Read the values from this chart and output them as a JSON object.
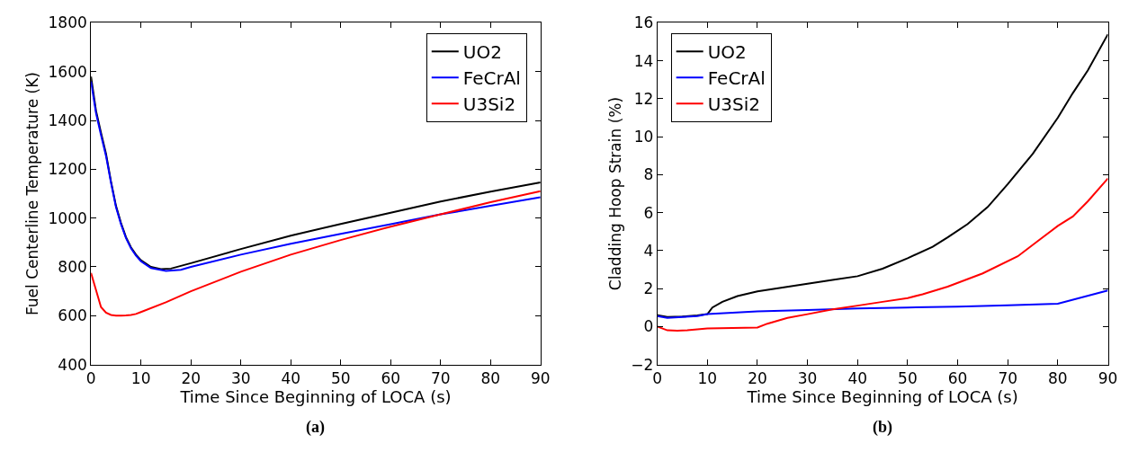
{
  "chart_data": [
    {
      "type": "line",
      "title": "(a)",
      "xlabel": "Time Since Beginning of LOCA (s)",
      "ylabel": "Fuel Centerline Temperature (K)",
      "xlim": [
        0,
        90
      ],
      "ylim": [
        400,
        1800
      ],
      "xticks": [
        0,
        10,
        20,
        30,
        40,
        50,
        60,
        70,
        80,
        90
      ],
      "yticks": [
        400,
        600,
        800,
        1000,
        1200,
        1400,
        1600,
        1800
      ],
      "legend": "top right",
      "marker": "none",
      "line_style": "solid",
      "series": [
        {
          "name": "UO2",
          "color": "#000000",
          "x": [
            0,
            1,
            2,
            3,
            4,
            5,
            6,
            7,
            8,
            9,
            10,
            12,
            14,
            16,
            20,
            30,
            40,
            50,
            60,
            70,
            80,
            90
          ],
          "values": [
            1580,
            1440,
            1350,
            1264,
            1150,
            1050,
            980,
            922,
            880,
            850,
            827,
            800,
            791,
            793,
            815,
            873,
            928,
            976,
            1022,
            1068,
            1108,
            1146
          ]
        },
        {
          "name": "FeCrAl",
          "color": "#0000ff",
          "x": [
            0,
            1,
            2,
            3,
            4,
            5,
            6,
            7,
            8,
            9,
            10,
            12,
            15,
            18,
            20,
            30,
            40,
            50,
            60,
            70,
            80,
            90
          ],
          "values": [
            1560,
            1430,
            1340,
            1255,
            1145,
            1045,
            975,
            918,
            876,
            846,
            823,
            795,
            783,
            788,
            800,
            850,
            895,
            935,
            975,
            1015,
            1050,
            1085
          ]
        },
        {
          "name": "U3Si2",
          "color": "#ff0000",
          "x": [
            0,
            1,
            2,
            3,
            4,
            5,
            6,
            7,
            8,
            9,
            10,
            15,
            20,
            30,
            40,
            50,
            60,
            70,
            80,
            90
          ],
          "values": [
            775,
            705,
            635,
            612,
            603,
            600,
            600,
            601,
            603,
            607,
            615,
            655,
            700,
            780,
            850,
            910,
            965,
            1015,
            1065,
            1110
          ]
        }
      ]
    },
    {
      "type": "line",
      "title": "(b)",
      "xlabel": "Time Since Beginning of LOCA (s)",
      "ylabel": "Cladding Hoop Strain (%)",
      "xlim": [
        0,
        90
      ],
      "ylim": [
        -2,
        16
      ],
      "xticks": [
        0,
        10,
        20,
        30,
        40,
        50,
        60,
        70,
        80,
        90
      ],
      "yticks": [
        {
          "value": -2,
          "label": "−2"
        },
        0,
        2,
        4,
        6,
        8,
        10,
        12,
        14,
        16
      ],
      "legend": "top left",
      "marker": "none",
      "line_style": "solid",
      "series": [
        {
          "name": "UO2",
          "color": "#000000",
          "x": [
            0,
            2,
            5,
            8,
            10,
            11,
            13,
            16,
            20,
            25,
            30,
            35,
            40,
            45,
            50,
            55,
            58,
            62,
            66,
            70,
            75,
            80,
            83,
            86,
            90
          ],
          "values": [
            0.6,
            0.5,
            0.52,
            0.58,
            0.65,
            1.0,
            1.3,
            1.6,
            1.85,
            2.05,
            2.25,
            2.45,
            2.65,
            3.05,
            3.6,
            4.2,
            4.7,
            5.4,
            6.3,
            7.5,
            9.1,
            11.0,
            12.3,
            13.5,
            15.4
          ]
        },
        {
          "name": "FeCrAl",
          "color": "#0000ff",
          "x": [
            0,
            2,
            5,
            8,
            10,
            20,
            30,
            40,
            50,
            60,
            70,
            80,
            90
          ],
          "values": [
            0.55,
            0.45,
            0.5,
            0.55,
            0.65,
            0.8,
            0.87,
            0.95,
            1.0,
            1.05,
            1.12,
            1.2,
            1.9
          ]
        },
        {
          "name": "U3Si2",
          "color": "#ff0000",
          "x": [
            0,
            2,
            4,
            6,
            10,
            15,
            20,
            22,
            26,
            30,
            35,
            40,
            45,
            50,
            53,
            58,
            65,
            72,
            76,
            80,
            83,
            86,
            90
          ],
          "values": [
            0.0,
            -0.2,
            -0.22,
            -0.2,
            -0.1,
            -0.08,
            -0.05,
            0.15,
            0.45,
            0.65,
            0.9,
            1.1,
            1.3,
            1.5,
            1.7,
            2.1,
            2.8,
            3.7,
            4.5,
            5.3,
            5.8,
            6.6,
            7.8
          ]
        }
      ]
    }
  ]
}
